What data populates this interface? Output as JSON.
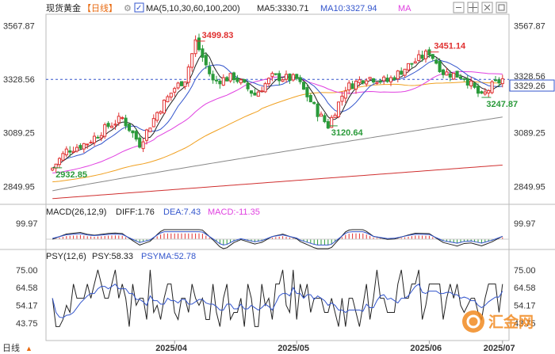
{
  "header": {
    "title": "现货黄金",
    "period": "【日线】",
    "ma_legend": "MA(5,10,30,60,100,200)",
    "ma5": "MA5:3330.71",
    "ma10": "MA10:3327.94",
    "ma_extra": "MA",
    "settings_icon": "gear-icon",
    "window_icons": [
      "minus-icon",
      "grid-icon",
      "fullscreen-icon",
      "square-icon"
    ]
  },
  "macd": {
    "title": "MACD(26,12,9)",
    "diff": "DIFF:1.76",
    "dea": "DEA:7.43",
    "macd": "MACD:-11.35"
  },
  "psy": {
    "title": "PSY(12,6)",
    "psy": "PSY:58.33",
    "psyma": "PSYMA:52.78"
  },
  "y_axis_left": [
    "3567.87",
    "3328.56",
    "3089.25",
    "2849.95"
  ],
  "y_axis_right": [
    "3567.87",
    "3328.56",
    "3089.25",
    "2849.95"
  ],
  "price_tag": "3329.26",
  "macd_axis": [
    "99.97"
  ],
  "psy_axis": [
    "75.00",
    "64.58",
    "54.17",
    "43.75"
  ],
  "x_labels": [
    "2025/04",
    "2025/05",
    "2025/06",
    "2025/07"
  ],
  "bottom_left": "日线",
  "watermark": "汇金网",
  "colors": {
    "up": "#e03030",
    "down": "#2a9a3a",
    "ma5": "#222222",
    "ma10": "#3355cc",
    "ma30": "#e040e0",
    "ma60": "#f0a020",
    "ma100": "#888888",
    "ma200": "#d03030",
    "accent": "#e86a10"
  },
  "chart_data": [
    {
      "type": "candlestick",
      "title": "现货黄金 日线",
      "ylim": [
        2780,
        3620
      ],
      "annotations": [
        {
          "label": "3499.83",
          "value": 3499.83
        },
        {
          "label": "3451.14",
          "value": 3451.14
        },
        {
          "label": "3120.64",
          "value": 3120.64
        },
        {
          "label": "3247.87",
          "value": 3247.87
        },
        {
          "label": "2932.85",
          "value": 2932.85
        }
      ],
      "last_price": 3329.26,
      "series": [
        {
          "name": "MA5",
          "value": 3330.71
        },
        {
          "name": "MA10",
          "value": 3327.94
        }
      ]
    },
    {
      "type": "bar",
      "title": "MACD(26,12,9)",
      "series": [
        {
          "name": "DIFF",
          "value": 1.76
        },
        {
          "name": "DEA",
          "value": 7.43
        },
        {
          "name": "MACD",
          "value": -11.35
        }
      ]
    },
    {
      "type": "line",
      "title": "PSY(12,6)",
      "ylim": [
        40,
        80
      ],
      "series": [
        {
          "name": "PSY",
          "value": 58.33
        },
        {
          "name": "PSYMA",
          "value": 52.78
        }
      ]
    }
  ]
}
